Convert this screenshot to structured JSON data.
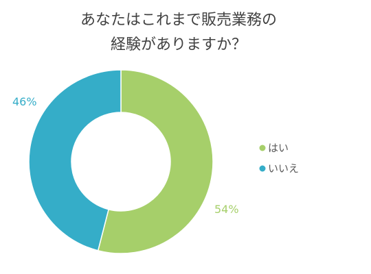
{
  "chart_data": {
    "type": "pie",
    "variant": "donut",
    "title_lines": [
      "あなたはこれまで販売業務の",
      "経験がありますか？"
    ],
    "categories": [
      "はい",
      "いいえ"
    ],
    "values": [
      54,
      46
    ],
    "data_labels": [
      "54%",
      "46%"
    ],
    "colors": [
      "#a6cf6a",
      "#35adc8"
    ],
    "legend_position": "right",
    "grid": false
  }
}
